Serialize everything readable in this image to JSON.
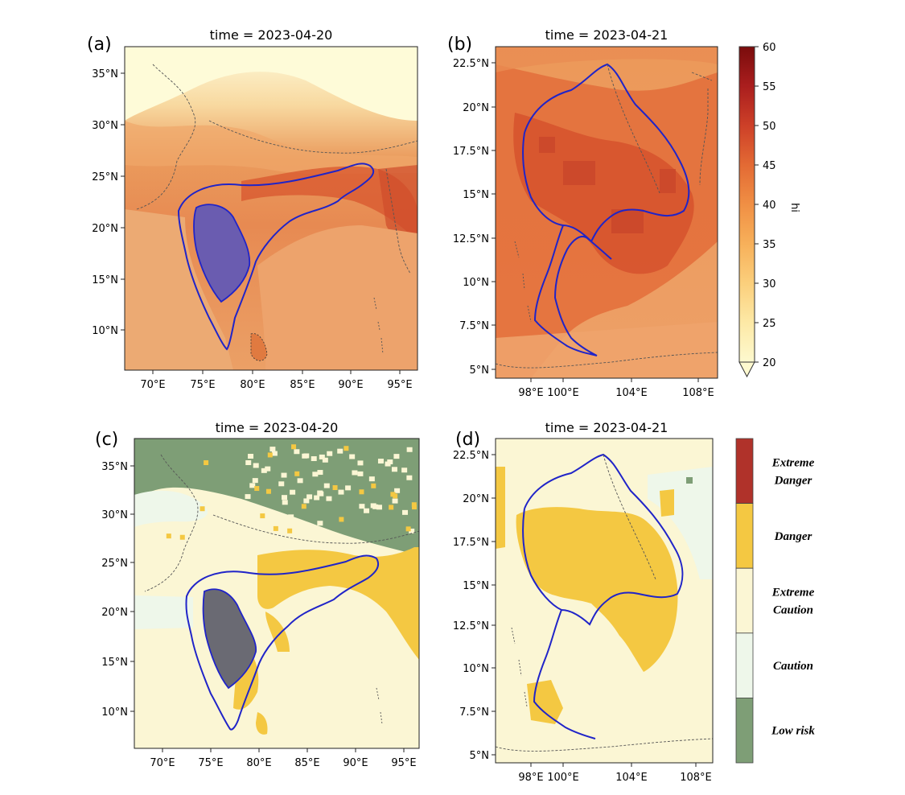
{
  "panels": [
    {
      "id": "a",
      "label": "(a)",
      "title": "time = 2023-04-20",
      "yticks": [
        "35°N",
        "30°N",
        "25°N",
        "20°N",
        "15°N",
        "10°N"
      ],
      "xticks": [
        "70°E",
        "75°E",
        "80°E",
        "85°E",
        "90°E",
        "95°E"
      ]
    },
    {
      "id": "b",
      "label": "(b)",
      "title": "time = 2023-04-21",
      "yticks": [
        "22.5°N",
        "20°N",
        "17.5°N",
        "15°N",
        "12.5°N",
        "10°N",
        "7.5°N",
        "5°N"
      ],
      "xticks": [
        "98°E",
        "100°E",
        "104°E",
        "108°E"
      ]
    },
    {
      "id": "c",
      "label": "(c)",
      "title": "time = 2023-04-20",
      "yticks": [
        "35°N",
        "30°N",
        "25°N",
        "20°N",
        "15°N",
        "10°N"
      ],
      "xticks": [
        "70°E",
        "75°E",
        "80°E",
        "85°E",
        "90°E",
        "95°E"
      ]
    },
    {
      "id": "d",
      "label": "(d)",
      "title": "time = 2023-04-21",
      "yticks": [
        "22.5°N",
        "20°N",
        "17.5°N",
        "15°N",
        "12.5°N",
        "10°N",
        "7.5°N",
        "5°N"
      ],
      "xticks": [
        "98°E",
        "100°E",
        "104°E",
        "108°E"
      ]
    }
  ],
  "colorbar": {
    "label": "hi",
    "ticks": [
      "60",
      "55",
      "50",
      "45",
      "40",
      "35",
      "30",
      "25",
      "20"
    ],
    "range": [
      20,
      60
    ],
    "colors": [
      "#fdf9cf",
      "#fde9a6",
      "#fbcf7c",
      "#f7b05a",
      "#f08f44",
      "#e36a34",
      "#cd4028",
      "#aa1e1e",
      "#7a0c0c"
    ]
  },
  "categories": {
    "items": [
      "Extreme Danger",
      "Danger",
      "Extreme Caution",
      "Caution",
      "Low risk"
    ],
    "lines": [
      [
        "Extreme",
        "Danger"
      ],
      [
        "Danger"
      ],
      [
        "Extreme",
        "Caution"
      ],
      [
        "Caution"
      ],
      [
        "Low risk"
      ]
    ],
    "colors": [
      "#b0322a",
      "#f4c842",
      "#fbf6d4",
      "#eef7ea",
      "#7e9e76"
    ]
  }
}
